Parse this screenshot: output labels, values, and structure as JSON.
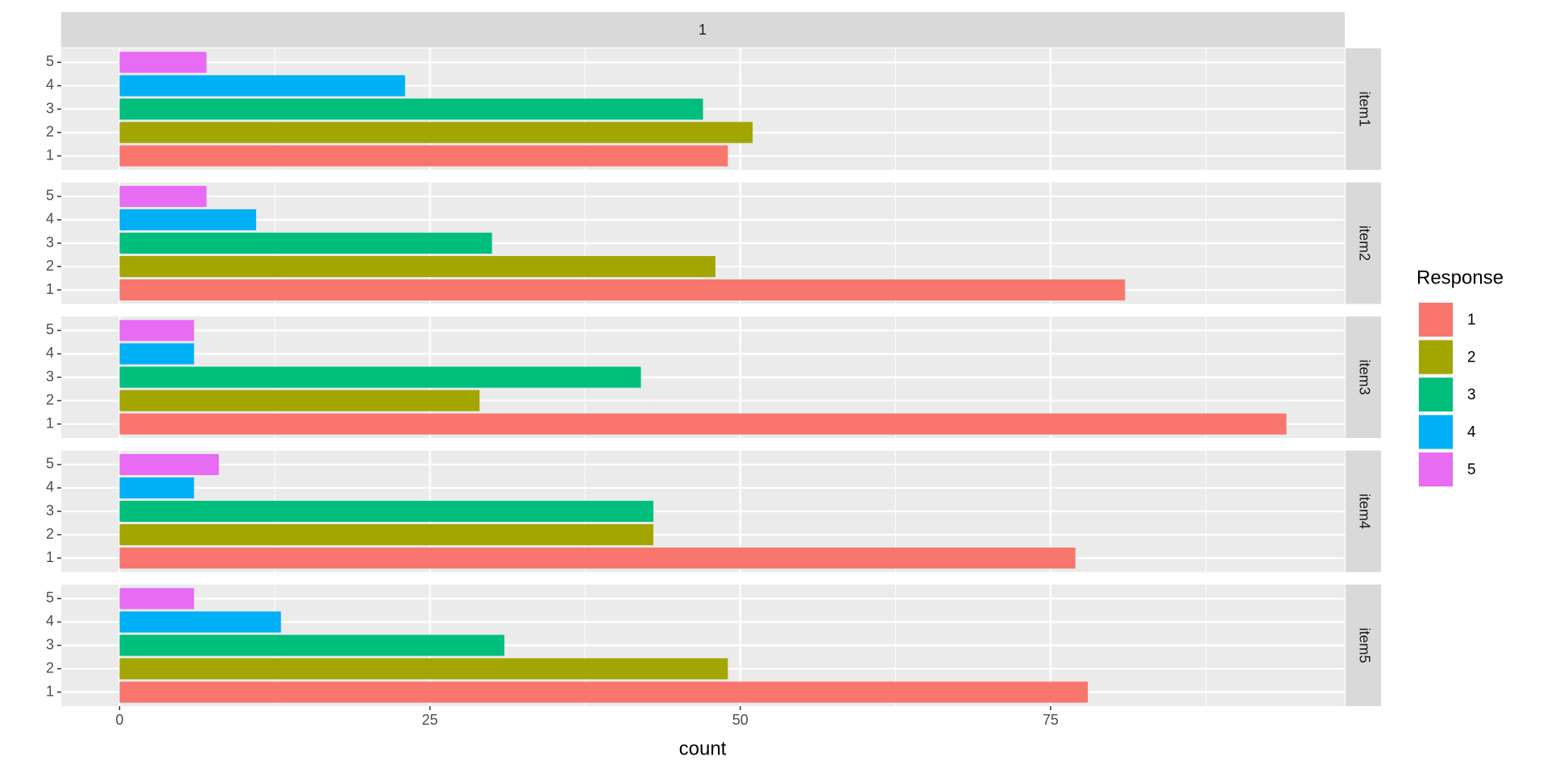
{
  "chart_data": {
    "type": "bar",
    "orientation": "horizontal",
    "top_strip": "1",
    "facets": [
      "item1",
      "item2",
      "item3",
      "item4",
      "item5"
    ],
    "series": [
      {
        "name": "1",
        "color": "#F8766D",
        "values": [
          49,
          81,
          94,
          77,
          78
        ]
      },
      {
        "name": "2",
        "color": "#A3A500",
        "values": [
          51,
          48,
          29,
          43,
          49
        ]
      },
      {
        "name": "3",
        "color": "#00BF7D",
        "values": [
          47,
          30,
          42,
          43,
          31
        ]
      },
      {
        "name": "4",
        "color": "#00B0F6",
        "values": [
          23,
          11,
          6,
          6,
          13
        ]
      },
      {
        "name": "5",
        "color": "#E76BF3",
        "values": [
          7,
          7,
          6,
          8,
          6
        ]
      }
    ],
    "legend_title": "Response",
    "x_label": "count",
    "xlim": [
      -4.7,
      98.7
    ],
    "xticks": [
      0,
      25,
      50,
      75
    ],
    "grid": true,
    "minor_grid": true
  }
}
